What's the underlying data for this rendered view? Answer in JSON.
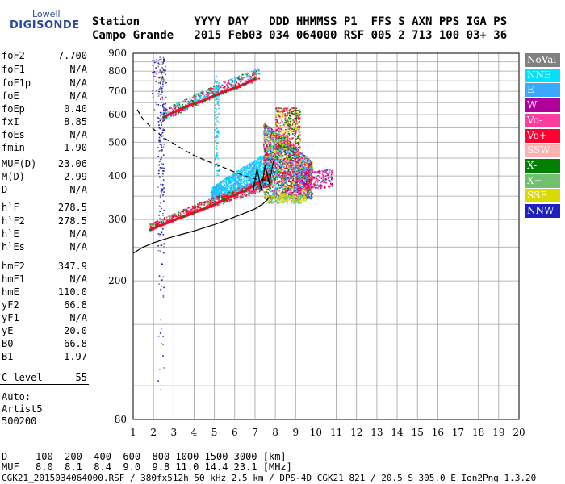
{
  "logo": {
    "top": "Lowell",
    "bottom": "DIGISONDE"
  },
  "header": {
    "row1": "Station        YYYY DAY   DDD HHMMSS P1  FFS S AXN PPS IGA PS",
    "row2": "Campo Grande   2015 Feb03 034 064000 RSF 005 2 713 100 03+ 36"
  },
  "params": [
    {
      "label": "foF2",
      "value": "7.700"
    },
    {
      "label": "foF1",
      "value": "N/A"
    },
    {
      "label": "foF1p",
      "value": "N/A"
    },
    {
      "label": "foE",
      "value": "N/A"
    },
    {
      "label": "foEp",
      "value": "0.40"
    },
    {
      "label": "fxI",
      "value": "8.85"
    },
    {
      "label": "foEs",
      "value": "N/A"
    },
    {
      "label": "fmin",
      "value": "1.90"
    },
    {
      "label": "MUF(D)",
      "value": "23.06"
    },
    {
      "label": "M(D)",
      "value": "2.99"
    },
    {
      "label": "D",
      "value": "N/A"
    },
    {
      "label": "h`F",
      "value": "278.5"
    },
    {
      "label": "h`F2",
      "value": "278.5"
    },
    {
      "label": "h`E",
      "value": "N/A"
    },
    {
      "label": "h`Es",
      "value": "N/A"
    },
    {
      "label": "hmF2",
      "value": "347.9"
    },
    {
      "label": "hmF1",
      "value": "N/A"
    },
    {
      "label": "hmE",
      "value": "110.0"
    },
    {
      "label": "yF2",
      "value": "66.8"
    },
    {
      "label": "yF1",
      "value": "N/A"
    },
    {
      "label": "yE",
      "value": "20.0"
    },
    {
      "label": "B0",
      "value": "66.8"
    },
    {
      "label": "B1",
      "value": "1.97"
    },
    {
      "label": "C-level",
      "value": "55"
    }
  ],
  "autoscaling": {
    "line1": "Auto:",
    "line2": "Artist5",
    "line3": "500200"
  },
  "legend": [
    {
      "label": "NoVal",
      "color": "#808080"
    },
    {
      "label": "NNE",
      "color": "#00e0ff"
    },
    {
      "label": "E",
      "color": "#3aa8ff"
    },
    {
      "label": "W",
      "color": "#b0009a"
    },
    {
      "label": "Vo-",
      "color": "#ff3aa0"
    },
    {
      "label": "Vo+",
      "color": "#ff0030"
    },
    {
      "label": "SSW",
      "color": "#ffb0b0"
    },
    {
      "label": "X-",
      "color": "#008000"
    },
    {
      "label": "X+",
      "color": "#70c070"
    },
    {
      "label": "SSE",
      "color": "#dada00"
    },
    {
      "label": "NNW",
      "color": "#2020c0"
    }
  ],
  "muf_table": {
    "d_label": "D",
    "d_values": "100  200  400  600  800 1000 1500 3000 [km]",
    "muf_label": "MUF",
    "muf_values": "8.0  8.1  8.4  9.0  9.8 11.0 14.4 23.1 [MHz]"
  },
  "footer": "CGK21_2015034064000.RSF / 380fx512h 50 kHz 2.5 km / DPS-4D CGK21 821 / 20.5 S 305.0 E Ion2Png 1.3.20",
  "chart_data": {
    "type": "scatter",
    "xlabel": "",
    "ylabel": "",
    "xlim": [
      1,
      20
    ],
    "ylim": [
      80,
      900
    ],
    "yscale": "log",
    "x_ticks": [
      1,
      2,
      3,
      4,
      5,
      6,
      7,
      8,
      9,
      10,
      11,
      12,
      13,
      14,
      15,
      16,
      17,
      18,
      19,
      20
    ],
    "y_ticks": [
      80,
      200,
      300,
      400,
      500,
      600,
      700,
      800,
      900
    ],
    "grid": true,
    "legend_position": "right",
    "series": [
      {
        "name": "O-trace",
        "kind": "points",
        "color": "#ff0030",
        "points": [
          [
            1.85,
            280
          ],
          [
            2.2,
            286
          ],
          [
            2.6,
            292
          ],
          [
            3.0,
            299
          ],
          [
            3.5,
            306
          ],
          [
            4.0,
            314
          ],
          [
            4.5,
            322
          ],
          [
            5.0,
            331
          ],
          [
            5.5,
            342
          ],
          [
            6.0,
            353
          ],
          [
            6.5,
            363
          ],
          [
            7.0,
            378
          ],
          [
            7.4,
            390
          ],
          [
            7.7,
            403
          ]
        ]
      },
      {
        "name": "X-trace",
        "kind": "points",
        "color": "#ff0030",
        "points": [
          [
            2.5,
            590
          ],
          [
            3.0,
            610
          ],
          [
            3.5,
            628
          ],
          [
            4.0,
            645
          ],
          [
            4.5,
            660
          ],
          [
            5.0,
            680
          ],
          [
            5.5,
            698
          ],
          [
            6.0,
            716
          ],
          [
            6.5,
            735
          ],
          [
            7.0,
            760
          ]
        ]
      },
      {
        "name": "Profile",
        "kind": "line",
        "color": "#000000",
        "points": [
          [
            1.0,
            240
          ],
          [
            1.5,
            250
          ],
          [
            2.0,
            257
          ],
          [
            2.5,
            263
          ],
          [
            3.0,
            268
          ],
          [
            3.5,
            273
          ],
          [
            4.0,
            278
          ],
          [
            4.5,
            284
          ],
          [
            5.0,
            290
          ],
          [
            5.5,
            297
          ],
          [
            6.0,
            305
          ],
          [
            6.5,
            313
          ],
          [
            7.0,
            322
          ],
          [
            7.4,
            333
          ],
          [
            7.7,
            347
          ]
        ]
      },
      {
        "name": "MUF",
        "kind": "dashed",
        "color": "#000000",
        "points": [
          [
            1.2,
            620
          ],
          [
            1.5,
            580
          ],
          [
            2.0,
            545
          ],
          [
            2.5,
            515
          ],
          [
            3.0,
            495
          ],
          [
            3.5,
            475
          ],
          [
            4.0,
            458
          ],
          [
            4.5,
            445
          ],
          [
            5.0,
            433
          ],
          [
            5.5,
            422
          ],
          [
            6.0,
            410
          ],
          [
            6.5,
            400
          ],
          [
            7.0,
            392
          ],
          [
            7.5,
            390
          ],
          [
            7.7,
            392
          ]
        ]
      },
      {
        "name": "trace-crossings",
        "kind": "line",
        "color": "#000000",
        "points": [
          [
            6.9,
            360
          ],
          [
            7.1,
            420
          ],
          [
            7.3,
            365
          ],
          [
            7.5,
            430
          ],
          [
            7.7,
            380
          ],
          [
            7.9,
            440
          ]
        ]
      }
    ]
  }
}
